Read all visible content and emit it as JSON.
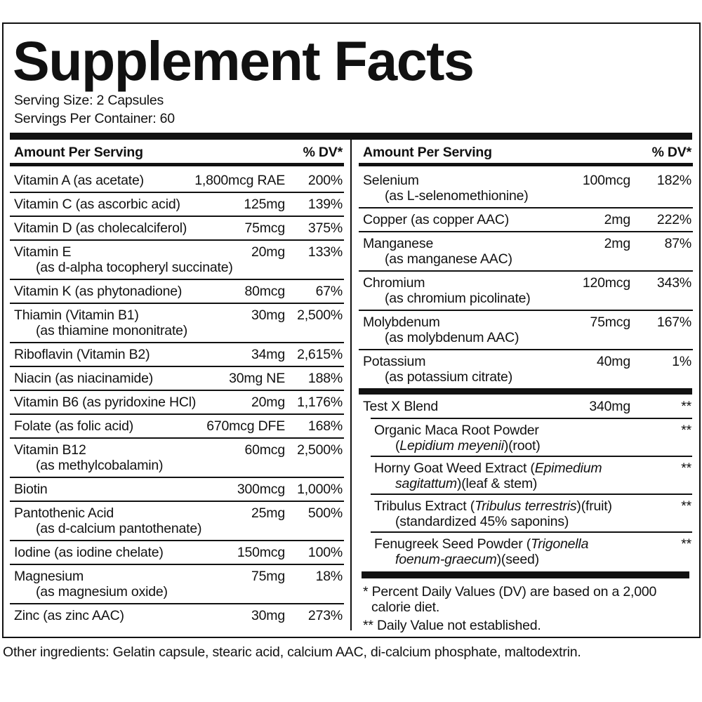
{
  "title": "Supplement Facts",
  "serving_size": "Serving Size: 2 Capsules",
  "servings_per_container": "Servings Per Container: 60",
  "left": {
    "header": {
      "amount": "Amount Per Serving",
      "dv": "% DV*"
    },
    "rows": [
      {
        "name": "Vitamin A (as acetate)",
        "amount": "1,800mcg RAE",
        "dv": "200%"
      },
      {
        "name": "Vitamin C (as ascorbic acid)",
        "amount": "125mg",
        "dv": "139%"
      },
      {
        "name": "Vitamin D (as cholecalciferol)",
        "amount": "75mcg",
        "dv": "375%"
      },
      {
        "name": "Vitamin E",
        "detail": "(as d-alpha tocopheryl succinate)",
        "amount": "20mg",
        "dv": "133%"
      },
      {
        "name": "Vitamin K (as phytonadione)",
        "amount": "80mcg",
        "dv": "67%"
      },
      {
        "name": "Thiamin (Vitamin B1)",
        "detail": "(as thiamine mononitrate)",
        "amount": "30mg",
        "dv": "2,500%"
      },
      {
        "name": "Riboflavin (Vitamin B2)",
        "amount": "34mg",
        "dv": "2,615%"
      },
      {
        "name": "Niacin (as niacinamide)",
        "amount": "30mg NE",
        "dv": "188%"
      },
      {
        "name": "Vitamin B6 (as pyridoxine HCl)",
        "amount": "20mg",
        "dv": "1,176%"
      },
      {
        "name": "Folate (as folic acid)",
        "amount": "670mcg DFE",
        "dv": "168%"
      },
      {
        "name": "Vitamin B12",
        "detail": "(as methylcobalamin)",
        "amount": "60mcg",
        "dv": "2,500%"
      },
      {
        "name": "Biotin",
        "amount": "300mcg",
        "dv": "1,000%"
      },
      {
        "name": "Pantothenic Acid",
        "detail": "(as d-calcium pantothenate)",
        "amount": "25mg",
        "dv": "500%"
      },
      {
        "name": "Iodine (as iodine chelate)",
        "amount": "150mcg",
        "dv": "100%"
      },
      {
        "name": "Magnesium",
        "detail": "(as magnesium oxide)",
        "amount": "75mg",
        "dv": "18%"
      },
      {
        "name": "Zinc (as zinc AAC)",
        "amount": "30mg",
        "dv": "273%"
      }
    ]
  },
  "right": {
    "header": {
      "amount": "Amount Per Serving",
      "dv": "% DV*"
    },
    "rows": [
      {
        "name": "Selenium",
        "detail": "(as L-selenomethionine)",
        "amount": "100mcg",
        "dv": "182%"
      },
      {
        "name": "Copper (as copper AAC)",
        "amount": "2mg",
        "dv": "222%"
      },
      {
        "name": "Manganese",
        "detail": "(as manganese AAC)",
        "amount": "2mg",
        "dv": "87%"
      },
      {
        "name": "Chromium",
        "detail": "(as chromium picolinate)",
        "amount": "120mcg",
        "dv": "343%"
      },
      {
        "name": "Molybdenum",
        "detail": "(as molybdenum AAC)",
        "amount": "75mcg",
        "dv": "167%"
      },
      {
        "name": "Potassium",
        "detail": "(as potassium citrate)",
        "amount": "40mg",
        "dv": "1%"
      }
    ],
    "blend": {
      "name": "Test X Blend",
      "amount": "340mg",
      "dv": "**",
      "items": [
        {
          "lines": [
            [
              {
                "text": "Organic Maca Root Powder"
              }
            ],
            [
              {
                "text": "("
              },
              {
                "text": "Lepidium meyenii",
                "italic": true
              },
              {
                "text": ")(root)"
              }
            ]
          ],
          "dv": "**"
        },
        {
          "lines": [
            [
              {
                "text": "Horny Goat Weed Extract ("
              },
              {
                "text": "Epimedium",
                "italic": true
              }
            ],
            [
              {
                "text": "sagitattum",
                "italic": true
              },
              {
                "text": ")(leaf & stem)"
              }
            ]
          ],
          "dv": "**"
        },
        {
          "lines": [
            [
              {
                "text": "Tribulus Extract ("
              },
              {
                "text": "Tribulus terrestris",
                "italic": true
              },
              {
                "text": ")(fruit)"
              }
            ],
            [
              {
                "text": "(standardized 45% saponins)"
              }
            ]
          ],
          "dv": "**"
        },
        {
          "lines": [
            [
              {
                "text": "Fenugreek Seed Powder ("
              },
              {
                "text": "Trigonella",
                "italic": true
              }
            ],
            [
              {
                "text": "foenum-graecum",
                "italic": true
              },
              {
                "text": ")(seed)"
              }
            ]
          ],
          "dv": "**"
        }
      ]
    },
    "footnotes": [
      "* Percent Daily Values (DV) are based on a 2,000 calorie diet.",
      "** Daily Value not established."
    ]
  },
  "other_ingredients": "Other ingredients: Gelatin capsule, stearic acid, calcium AAC, di-calcium phosphate, maltodextrin."
}
